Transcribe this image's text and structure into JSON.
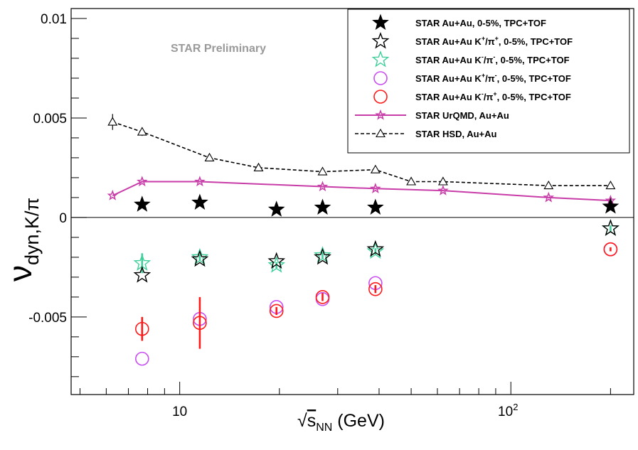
{
  "chart_data": {
    "type": "scatter",
    "title": "",
    "annotation": "STAR Preliminary",
    "xlabel": "√s_NN (GeV)",
    "xlabel_parts": {
      "radical": "√",
      "s": "s",
      "sub": "NN",
      "unit": " (GeV)"
    },
    "ylabel": "ν_dyn,K/π",
    "ylabel_parts": {
      "nu": "ν",
      "sub": "dyn,K/π"
    },
    "xscale": "log",
    "xlim": [
      4.7,
      235
    ],
    "ylim": [
      -0.0089,
      0.0105
    ],
    "x_ticks": [
      {
        "value": 10,
        "label": "10"
      },
      {
        "value": 100,
        "label": "10",
        "sup": "2"
      }
    ],
    "y_ticks": [
      {
        "value": 0.01,
        "label": "0.01"
      },
      {
        "value": 0.005,
        "label": "0.005"
      },
      {
        "value": 0,
        "label": "0"
      },
      {
        "value": -0.005,
        "label": "-0.005"
      }
    ],
    "zero_line": true,
    "grid": false,
    "legend_position": "top-right",
    "series": [
      {
        "key": "kpi",
        "name": "STAR Au+Au, 0-5%, TPC+TOF",
        "legend_parts": [
          "STAR Au+Au, 0-5%, TPC+TOF"
        ],
        "marker": "star-filled",
        "color": "#000000",
        "x": [
          7.7,
          11.5,
          19.6,
          27,
          39,
          200
        ],
        "y": [
          0.00065,
          0.00075,
          0.0004,
          0.0005,
          0.0005,
          0.00055
        ]
      },
      {
        "key": "kppip",
        "name": "STAR Au+Au K+/π+, 0-5%, TPC+TOF",
        "legend_parts": [
          "STAR Au+Au K",
          "+",
          "/π",
          "+",
          ", 0-5%, TPC+TOF"
        ],
        "marker": "star-open",
        "color": "#000000",
        "x": [
          7.7,
          11.5,
          19.6,
          27,
          39,
          200
        ],
        "y": [
          -0.0029,
          -0.0021,
          -0.0022,
          -0.002,
          -0.0016,
          -0.00055
        ]
      },
      {
        "key": "kmpim",
        "name": "STAR Au+Au K-/π-, 0-5%, TPC+TOF",
        "legend_parts": [
          "STAR Au+Au K",
          "-",
          "/π",
          "-",
          ", 0-5%, TPC+TOF"
        ],
        "marker": "star-open",
        "color": "#3fcf9a",
        "x": [
          7.7,
          11.5,
          19.6,
          27,
          39,
          200
        ],
        "y": [
          -0.0023,
          -0.002,
          -0.0024,
          -0.0019,
          -0.0017,
          -0.00055
        ],
        "yerr": [
          0.0005,
          0.00015,
          0.00015,
          0.00015,
          0.00015,
          0.00015
        ]
      },
      {
        "key": "kppim",
        "name": "STAR Au+Au K+/π-, 0-5%, TPC+TOF",
        "legend_parts": [
          "STAR Au+Au K",
          "+",
          "/π",
          "-",
          ", 0-5%, TPC+TOF"
        ],
        "marker": "circle-open",
        "color": "#c84ef0",
        "x": [
          7.7,
          11.5,
          19.6,
          27,
          39,
          200
        ],
        "y": [
          -0.0071,
          -0.0051,
          -0.0045,
          -0.0041,
          -0.0033,
          -0.0016
        ]
      },
      {
        "key": "kmpip",
        "name": "STAR Au+Au K-/π+, 0-5%, TPC+TOF",
        "legend_parts": [
          "STAR Au+Au K",
          "-",
          "/π",
          "+",
          ", 0-5%, TPC+TOF"
        ],
        "marker": "circle-open",
        "color": "#ff1a1a",
        "x": [
          7.7,
          11.5,
          19.6,
          27,
          39,
          200
        ],
        "y": [
          -0.0056,
          -0.0053,
          -0.0047,
          -0.004,
          -0.0036,
          -0.0016
        ],
        "yerr": [
          0.0006,
          0.0013,
          0.0002,
          0.0002,
          0.0002,
          0.0001
        ]
      },
      {
        "key": "urqmd",
        "name": "STAR UrQMD, Au+Au",
        "legend_parts": [
          "STAR UrQMD, Au+Au"
        ],
        "marker": "star-small",
        "line": "solid",
        "color": "#c83ca8",
        "x": [
          6.27,
          7.7,
          11.5,
          27,
          39,
          62.4,
          130,
          200
        ],
        "y": [
          0.0011,
          0.0018,
          0.0018,
          0.00155,
          0.00145,
          0.00135,
          0.001,
          0.00085
        ]
      },
      {
        "key": "hsd",
        "name": "STAR HSD, Au+Au",
        "legend_parts": [
          "STAR HSD, Au+Au"
        ],
        "marker": "triangle-open",
        "line": "dashed",
        "color": "#000000",
        "x": [
          6.27,
          7.7,
          12.3,
          17.3,
          27,
          39,
          50,
          62.4,
          130,
          200
        ],
        "y": [
          0.0048,
          0.0043,
          0.003,
          0.0025,
          0.0023,
          0.0024,
          0.0018,
          0.0018,
          0.0016,
          0.0016
        ],
        "yerr": [
          0.0004,
          0.0002,
          0.0001,
          0.0001,
          0.0001,
          0.0001,
          0.0001,
          0.0001,
          0.0001,
          0.0001
        ]
      }
    ]
  }
}
